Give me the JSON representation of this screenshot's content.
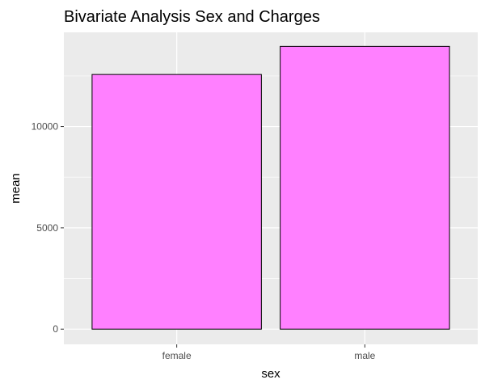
{
  "chart_data": {
    "type": "bar",
    "title": "Bivariate Analysis Sex and Charges",
    "xlabel": "sex",
    "ylabel": "mean",
    "categories": [
      "female",
      "male"
    ],
    "values": [
      12570,
      13957
    ],
    "ylim": [
      -750,
      14650
    ],
    "yticks": [
      0,
      5000,
      10000
    ],
    "ytick_labels": [
      "0",
      "5000",
      "10000"
    ],
    "grid": true,
    "legend": "none",
    "colors": {
      "bar_fill": "#FF80FF",
      "bar_stroke": "#000000",
      "panel_bg": "#EBEBEB",
      "grid_major": "#FFFFFF",
      "tick_text": "#4D4D4D",
      "tick_mark": "#333333"
    }
  }
}
